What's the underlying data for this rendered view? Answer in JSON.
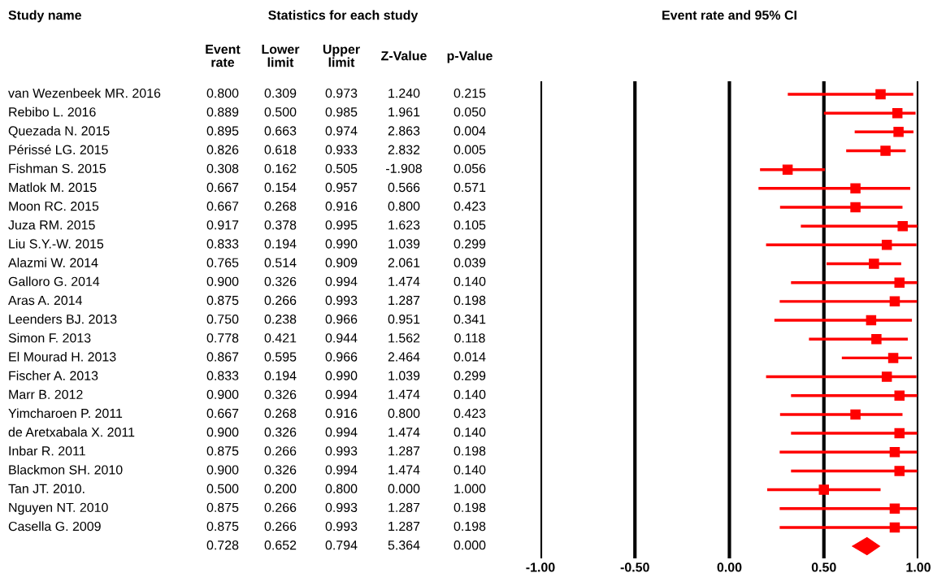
{
  "chart_data": [
    {
      "type": "other",
      "title": "Statistics for each study",
      "ylabel": "Study name",
      "categories": [
        "Event\nrate",
        "Lower\nlimit",
        "Upper\nlimit",
        "Z-Value",
        "p-Value"
      ],
      "y_categories": [
        "van Wezenbeek MR. 2016",
        "Rebibo L. 2016",
        "Quezada N. 2015",
        "Périssé LG. 2015",
        "Fishman S. 2015",
        "Matlok M. 2015",
        "Moon RC. 2015",
        "Juza RM. 2015",
        "Liu S.Y.-W. 2015",
        "Alazmi W. 2014",
        "Galloro G. 2014",
        "Aras A. 2014",
        "Leenders BJ. 2013",
        "Simon F. 2013",
        "El Mourad H. 2013",
        "Fischer A. 2013",
        "Marr B. 2012",
        "Yimcharoen P. 2011",
        "de Aretxabala X. 2011",
        "Inbar R. 2011",
        "Blackmon SH. 2010",
        "Tan JT. 2010.",
        "Nguyen NT. 2010",
        "Casella G. 2009",
        null
      ],
      "cell_labels": [
        [
          "0.800",
          "0.309",
          "0.973",
          "1.240",
          "0.215"
        ],
        [
          "0.889",
          "0.500",
          "0.985",
          "1.961",
          "0.050"
        ],
        [
          "0.895",
          "0.663",
          "0.974",
          "2.863",
          "0.004"
        ],
        [
          "0.826",
          "0.618",
          "0.933",
          "2.832",
          "0.005"
        ],
        [
          "0.308",
          "0.162",
          "0.505",
          "-1.908",
          "0.056"
        ],
        [
          "0.667",
          "0.154",
          "0.957",
          "0.566",
          "0.571"
        ],
        [
          "0.667",
          "0.268",
          "0.916",
          "0.800",
          "0.423"
        ],
        [
          "0.917",
          "0.378",
          "0.995",
          "1.623",
          "0.105"
        ],
        [
          "0.833",
          "0.194",
          "0.990",
          "1.039",
          "0.299"
        ],
        [
          "0.765",
          "0.514",
          "0.909",
          "2.061",
          "0.039"
        ],
        [
          "0.900",
          "0.326",
          "0.994",
          "1.474",
          "0.140"
        ],
        [
          "0.875",
          "0.266",
          "0.993",
          "1.287",
          "0.198"
        ],
        [
          "0.750",
          "0.238",
          "0.966",
          "0.951",
          "0.341"
        ],
        [
          "0.778",
          "0.421",
          "0.944",
          "1.562",
          "0.118"
        ],
        [
          "0.867",
          "0.595",
          "0.966",
          "2.464",
          "0.014"
        ],
        [
          "0.833",
          "0.194",
          "0.990",
          "1.039",
          "0.299"
        ],
        [
          "0.900",
          "0.326",
          "0.994",
          "1.474",
          "0.140"
        ],
        [
          "0.667",
          "0.268",
          "0.916",
          "0.800",
          "0.423"
        ],
        [
          "0.900",
          "0.326",
          "0.994",
          "1.474",
          "0.140"
        ],
        [
          "0.875",
          "0.266",
          "0.993",
          "1.287",
          "0.198"
        ],
        [
          "0.900",
          "0.326",
          "0.994",
          "1.474",
          "0.140"
        ],
        [
          "0.500",
          "0.200",
          "0.800",
          "0.000",
          "1.000"
        ],
        [
          "0.875",
          "0.266",
          "0.993",
          "1.287",
          "0.198"
        ],
        [
          "0.875",
          "0.266",
          "0.993",
          "1.287",
          "0.198"
        ],
        [
          "0.728",
          "0.652",
          "0.794",
          "5.364",
          "0.000"
        ]
      ]
    },
    {
      "type": "scatter",
      "orientation": "horizontal",
      "title": "Event rate and 95% CI",
      "categories": [
        null,
        null,
        null,
        null,
        null,
        null,
        null,
        null,
        null,
        null,
        null,
        null,
        null,
        null,
        null,
        null,
        null,
        null,
        null,
        null,
        null,
        null,
        null,
        null,
        null
      ],
      "series": [
        {
          "color": "#ff0000",
          "marker": "square",
          "values": [
            0.8,
            0.889,
            0.895,
            0.826,
            0.308,
            0.667,
            0.667,
            0.917,
            0.833,
            0.765,
            0.9,
            0.875,
            0.75,
            0.778,
            0.867,
            0.833,
            0.9,
            0.667,
            0.9,
            0.875,
            0.9,
            0.5,
            0.875,
            0.875,
            null
          ],
          "errors": [
            [
              0.309,
              0.973
            ],
            [
              0.5,
              0.985
            ],
            [
              0.663,
              0.974
            ],
            [
              0.618,
              0.933
            ],
            [
              0.162,
              0.505
            ],
            [
              0.154,
              0.957
            ],
            [
              0.268,
              0.916
            ],
            [
              0.378,
              0.995
            ],
            [
              0.194,
              0.99
            ],
            [
              0.514,
              0.909
            ],
            [
              0.326,
              0.994
            ],
            [
              0.266,
              0.993
            ],
            [
              0.238,
              0.966
            ],
            [
              0.421,
              0.944
            ],
            [
              0.595,
              0.966
            ],
            [
              0.194,
              0.99
            ],
            [
              0.326,
              0.994
            ],
            [
              0.268,
              0.916
            ],
            [
              0.326,
              0.994
            ],
            [
              0.266,
              0.993
            ],
            [
              0.326,
              0.994
            ],
            [
              0.2,
              0.8
            ],
            [
              0.266,
              0.993
            ],
            [
              0.266,
              0.993
            ],
            null
          ]
        },
        {
          "color": "#ff0000",
          "marker": "diamond",
          "values": [
            null,
            null,
            null,
            null,
            null,
            null,
            null,
            null,
            null,
            null,
            null,
            null,
            null,
            null,
            null,
            null,
            null,
            null,
            null,
            null,
            null,
            null,
            null,
            null,
            0.728
          ],
          "errors": [
            null,
            null,
            null,
            null,
            null,
            null,
            null,
            null,
            null,
            null,
            null,
            null,
            null,
            null,
            null,
            null,
            null,
            null,
            null,
            null,
            null,
            null,
            null,
            null,
            [
              0.652,
              0.794
            ]
          ]
        }
      ],
      "xlim": [
        -1,
        1
      ],
      "xticks": [
        {
          "value": -1,
          "label": "-1.00"
        },
        {
          "value": -0.5,
          "label": "-0.50"
        },
        {
          "value": 0,
          "label": "0.00"
        },
        {
          "value": 0.5,
          "label": "0.50"
        },
        {
          "value": 1,
          "label": "1.00"
        }
      ],
      "grid": "x",
      "tick_labels": "x"
    }
  ]
}
